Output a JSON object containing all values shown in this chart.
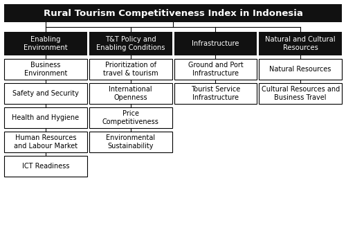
{
  "title": "Rural Tourism Competitiveness Index in Indonesia",
  "title_bg": "#111111",
  "title_fg": "#ffffff",
  "header_bg": "#111111",
  "header_fg": "#ffffff",
  "box_bg": "#ffffff",
  "box_fg": "#000000",
  "columns": [
    {
      "header": "Enabling\nEnvironment",
      "items": [
        "Business\nEnvironment",
        "Safety and Security",
        "Health and Hygiene",
        "Human Resources\nand Labour Market",
        "ICT Readiness"
      ]
    },
    {
      "header": "T&T Policy and\nEnabling Conditions",
      "items": [
        "Prioritization of\ntravel & tourism",
        "International\nOpenness",
        "Price\nCompetitiveness",
        "Environmental\nSustainability"
      ]
    },
    {
      "header": "Infrastructure",
      "items": [
        "Ground and Port\nInfrastructure",
        "Tourist Service\nInfrastructure"
      ]
    },
    {
      "header": "Natural and Cultural\nResources",
      "items": [
        "Natural Resources",
        "Cultural Resources and\nBusiness Travel"
      ]
    }
  ]
}
